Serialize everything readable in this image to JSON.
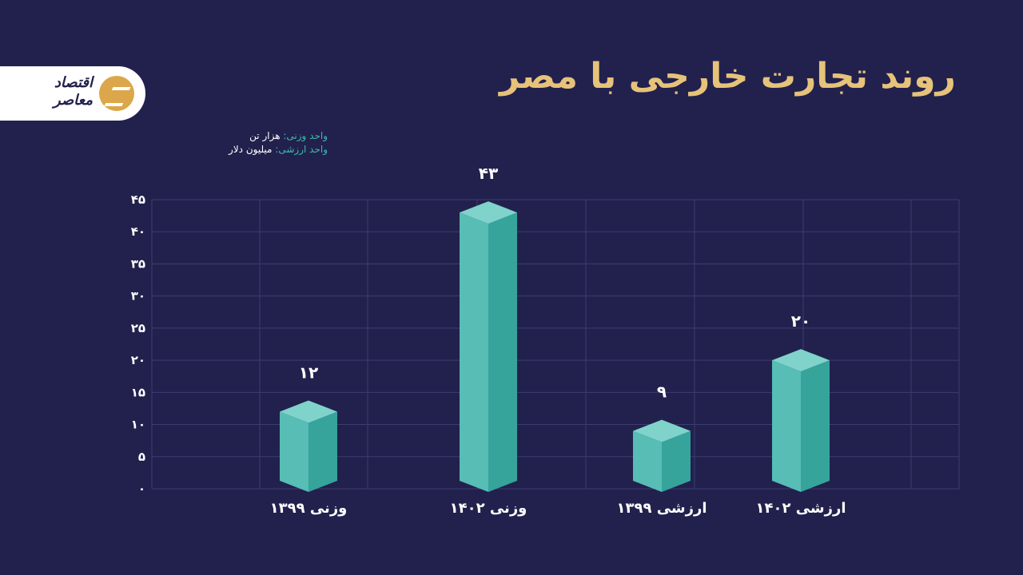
{
  "title": "روند تجارت خارجی با مصر",
  "logo": {
    "brand_text": "اقتصاد معاصر",
    "icon": "logo-stripes-icon"
  },
  "legend": {
    "weight_key": "واحد وزنی:",
    "weight_unit": "هزار تن",
    "value_key": "واحد ارزشی:",
    "value_unit": "میلیون دلار"
  },
  "colors": {
    "background": "#22214d",
    "bar_front": "#57bdb5",
    "bar_side": "#36a49b",
    "bar_top": "#7fd3cb",
    "title": "#e6c27a"
  },
  "chart_data": {
    "type": "bar",
    "title": "روند تجارت خارجی با مصر",
    "categories": [
      "وزنی ۱۳۹۹",
      "وزنی ۱۴۰۲",
      "ارزشی ۱۳۹۹",
      "ارزشی ۱۴۰۲"
    ],
    "values": [
      12,
      43,
      9,
      20
    ],
    "value_labels": [
      "۱۲",
      "۴۳",
      "۹",
      "۲۰"
    ],
    "yticks": [
      "۰",
      "۵",
      "۱۰",
      "۱۵",
      "۲۰",
      "۲۵",
      "۳۰",
      "۳۵",
      "۴۰",
      "۴۵"
    ],
    "ylim": [
      0,
      45
    ],
    "grid": true,
    "xlabel": "",
    "ylabel": ""
  }
}
